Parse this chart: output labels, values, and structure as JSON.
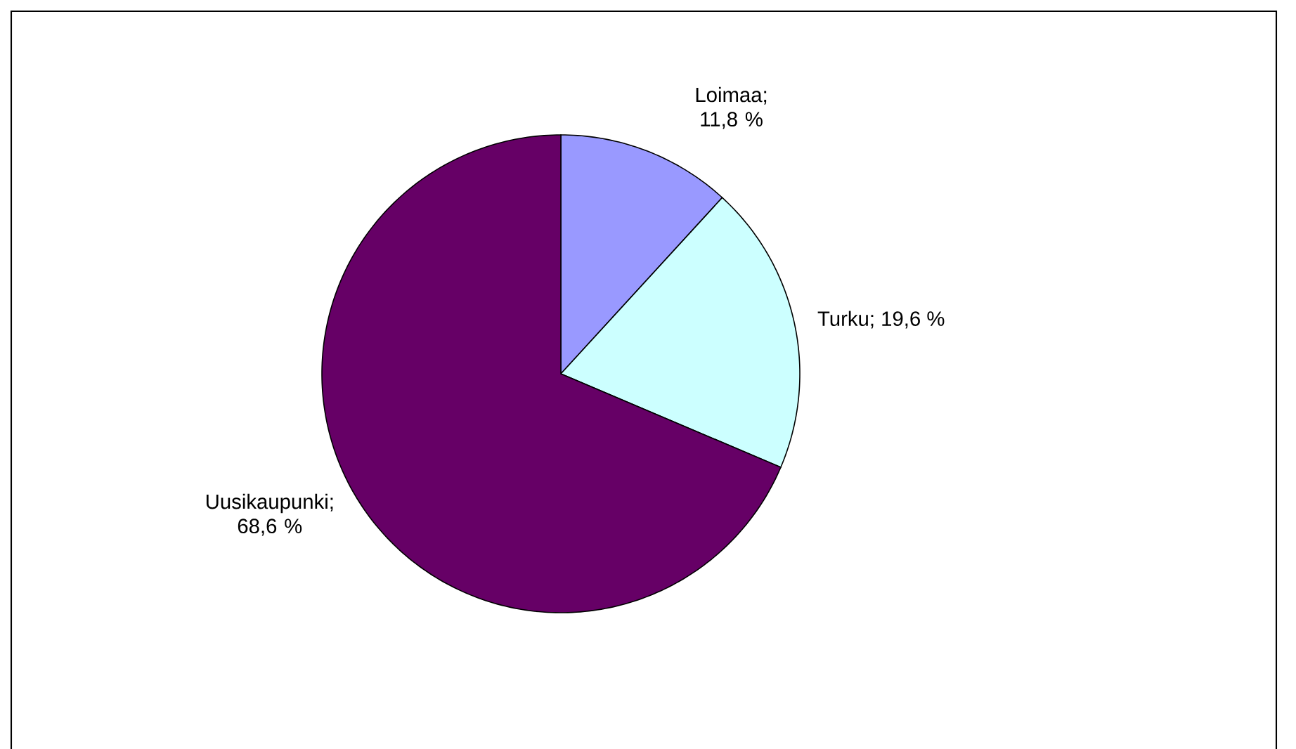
{
  "chart_data": {
    "type": "pie",
    "categories": [
      "Loimaa",
      "Turku",
      "Uusikaupunki"
    ],
    "values": [
      11.8,
      19.6,
      68.6
    ],
    "colors": [
      "#9999ff",
      "#ccffff",
      "#660066"
    ],
    "value_labels": [
      "; 11,8 %",
      "; 19,6 %",
      "; 68,6 %"
    ]
  }
}
